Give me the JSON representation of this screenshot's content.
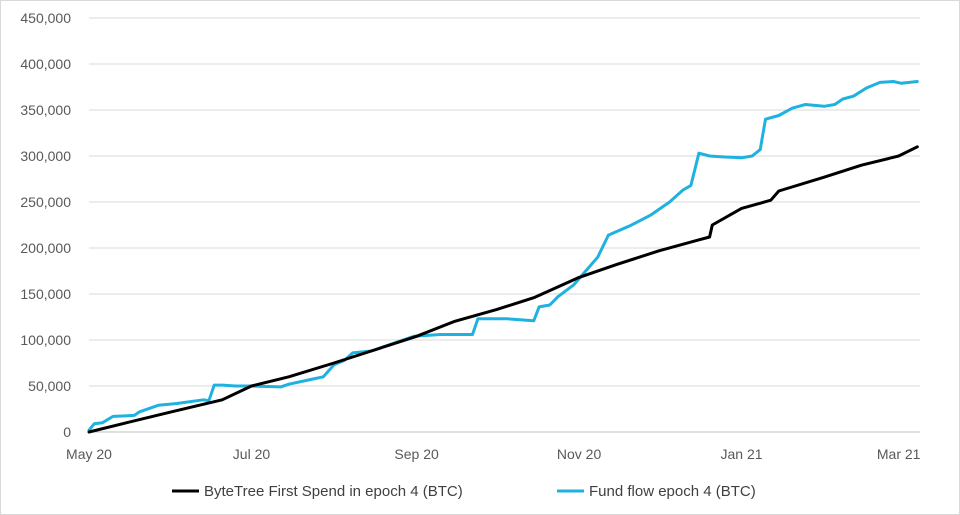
{
  "chart_data": {
    "type": "line",
    "title": "",
    "xlabel": "",
    "ylabel": "",
    "x_ticks": [
      "May 20",
      "Jul 20",
      "Sep 20",
      "Nov 20",
      "Jan 21",
      "Mar 21"
    ],
    "y_ticks": [
      "0",
      "50,000",
      "100,000",
      "150,000",
      "200,000",
      "250,000",
      "300,000",
      "350,000",
      "400,000",
      "450,000"
    ],
    "ylim": [
      0,
      450000
    ],
    "xlim": [
      "2020-05-01",
      "2021-03-09"
    ],
    "grid": "horizontal",
    "legend_position": "bottom",
    "series": [
      {
        "name": "ByteTree First Spend in epoch 4 (BTC)",
        "color": "#000000",
        "points": [
          [
            "2020-05-01",
            0
          ],
          [
            "2020-05-15",
            10000
          ],
          [
            "2020-06-01",
            22000
          ],
          [
            "2020-06-20",
            35000
          ],
          [
            "2020-07-01",
            50000
          ],
          [
            "2020-07-15",
            60000
          ],
          [
            "2020-08-01",
            75000
          ],
          [
            "2020-08-15",
            88000
          ],
          [
            "2020-09-01",
            104000
          ],
          [
            "2020-09-15",
            120000
          ],
          [
            "2020-10-01",
            133000
          ],
          [
            "2020-10-15",
            146000
          ],
          [
            "2020-11-01",
            168000
          ],
          [
            "2020-11-15",
            182000
          ],
          [
            "2020-12-01",
            197000
          ],
          [
            "2020-12-15",
            208000
          ],
          [
            "2020-12-20",
            212000
          ],
          [
            "2020-12-21",
            225000
          ],
          [
            "2021-01-01",
            243000
          ],
          [
            "2021-01-12",
            252000
          ],
          [
            "2021-01-15",
            262000
          ],
          [
            "2021-02-01",
            277000
          ],
          [
            "2021-02-15",
            290000
          ],
          [
            "2021-03-01",
            300000
          ],
          [
            "2021-03-08",
            310000
          ]
        ]
      },
      {
        "name": "Fund flow epoch 4 (BTC)",
        "color": "#1FB1E0",
        "points": [
          [
            "2020-05-01",
            2000
          ],
          [
            "2020-05-03",
            9000
          ],
          [
            "2020-05-06",
            10000
          ],
          [
            "2020-05-10",
            17000
          ],
          [
            "2020-05-18",
            18000
          ],
          [
            "2020-05-20",
            22000
          ],
          [
            "2020-05-27",
            29000
          ],
          [
            "2020-06-03",
            31000
          ],
          [
            "2020-06-13",
            35000
          ],
          [
            "2020-06-15",
            34000
          ],
          [
            "2020-06-17",
            51000
          ],
          [
            "2020-06-20",
            51000
          ],
          [
            "2020-06-25",
            50000
          ],
          [
            "2020-07-01",
            50000
          ],
          [
            "2020-07-12",
            49000
          ],
          [
            "2020-07-15",
            52000
          ],
          [
            "2020-07-23",
            57000
          ],
          [
            "2020-07-28",
            60000
          ],
          [
            "2020-08-01",
            73000
          ],
          [
            "2020-08-05",
            78000
          ],
          [
            "2020-08-08",
            86000
          ],
          [
            "2020-08-15",
            88000
          ],
          [
            "2020-08-20",
            93000
          ],
          [
            "2020-08-25",
            98000
          ],
          [
            "2020-08-31",
            104000
          ],
          [
            "2020-09-05",
            105000
          ],
          [
            "2020-09-10",
            106000
          ],
          [
            "2020-09-22",
            106000
          ],
          [
            "2020-09-24",
            123000
          ],
          [
            "2020-10-05",
            123000
          ],
          [
            "2020-10-15",
            121000
          ],
          [
            "2020-10-17",
            136000
          ],
          [
            "2020-10-21",
            138000
          ],
          [
            "2020-10-24",
            147000
          ],
          [
            "2020-10-30",
            160000
          ],
          [
            "2020-11-02",
            170000
          ],
          [
            "2020-11-08",
            190000
          ],
          [
            "2020-11-12",
            214000
          ],
          [
            "2020-11-20",
            224000
          ],
          [
            "2020-11-28",
            236000
          ],
          [
            "2020-12-05",
            250000
          ],
          [
            "2020-12-10",
            263000
          ],
          [
            "2020-12-13",
            268000
          ],
          [
            "2020-12-16",
            303000
          ],
          [
            "2020-12-20",
            300000
          ],
          [
            "2020-12-25",
            299000
          ],
          [
            "2021-01-01",
            298000
          ],
          [
            "2021-01-05",
            300000
          ],
          [
            "2021-01-08",
            307000
          ],
          [
            "2021-01-10",
            340000
          ],
          [
            "2021-01-15",
            344000
          ],
          [
            "2021-01-20",
            352000
          ],
          [
            "2021-01-25",
            356000
          ],
          [
            "2021-02-01",
            354000
          ],
          [
            "2021-02-05",
            356000
          ],
          [
            "2021-02-08",
            362000
          ],
          [
            "2021-02-12",
            365000
          ],
          [
            "2021-02-17",
            374000
          ],
          [
            "2021-02-22",
            380000
          ],
          [
            "2021-02-27",
            381000
          ],
          [
            "2021-03-02",
            379000
          ],
          [
            "2021-03-08",
            381000
          ]
        ]
      }
    ]
  }
}
